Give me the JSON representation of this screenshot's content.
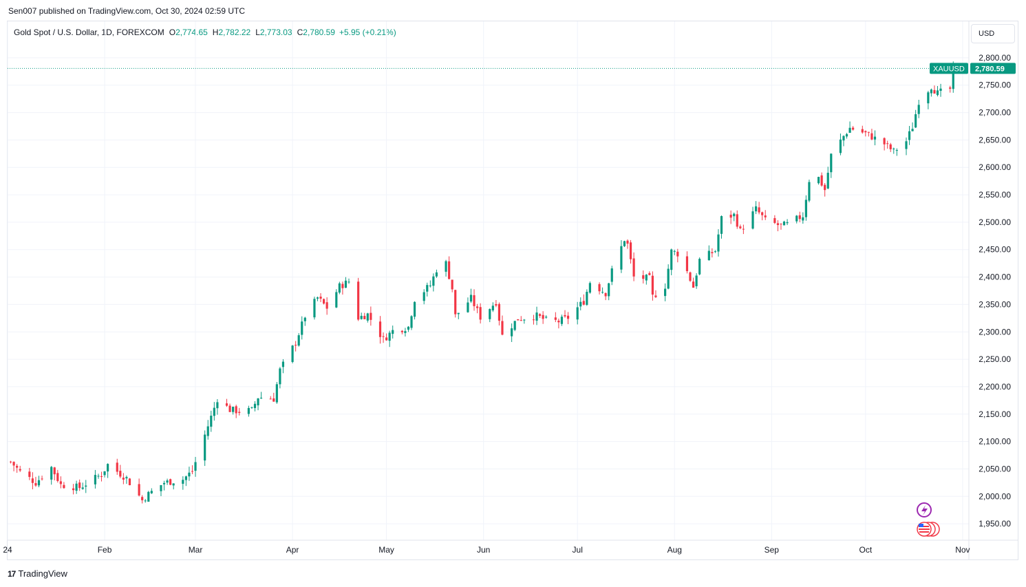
{
  "published": "Sen007 published on TradingView.com, Oct 30, 2024 02:59 UTC",
  "legend": {
    "symbol": "Gold Spot / U.S. Dollar, 1D, FOREXCOM",
    "o_label": "O",
    "o_value": "2,774.65",
    "h_label": "H",
    "h_value": "2,782.22",
    "l_label": "L",
    "l_value": "2,773.03",
    "c_label": "C",
    "c_value": "2,780.59",
    "change": "+5.95 (+0.21%)"
  },
  "currency": "USD",
  "footer": {
    "brand": "TradingView"
  },
  "colors": {
    "up": "#089981",
    "down": "#f23645",
    "grid": "#f0f3fa",
    "last_price_bg": "#089981"
  },
  "chart_data": {
    "type": "candlestick",
    "symbol_tag": "XAUUSD",
    "last_price": 2780.59,
    "last_price_label": "2,780.59",
    "ylim": [
      1920,
      2830
    ],
    "yticks": [
      1950,
      2000,
      2050,
      2100,
      2150,
      2200,
      2250,
      2300,
      2350,
      2400,
      2450,
      2500,
      2550,
      2600,
      2650,
      2700,
      2750,
      2800
    ],
    "ytick_labels": [
      "1,950.00",
      "2,000.00",
      "2,050.00",
      "2,100.00",
      "2,150.00",
      "2,200.00",
      "2,250.00",
      "2,300.00",
      "2,350.00",
      "2,400.00",
      "2,450.00",
      "2,500.00",
      "2,550.00",
      "2,600.00",
      "2,650.00",
      "2,700.00",
      "2,750.00",
      "2,800.00"
    ],
    "xrange": [
      "2024-01-01",
      "2024-11-03"
    ],
    "xticks": [
      {
        "date": "2024-01-01",
        "label": "24"
      },
      {
        "date": "2024-02-01",
        "label": "Feb"
      },
      {
        "date": "2024-03-01",
        "label": "Mar"
      },
      {
        "date": "2024-04-01",
        "label": "Apr"
      },
      {
        "date": "2024-05-01",
        "label": "May"
      },
      {
        "date": "2024-06-01",
        "label": "Jun"
      },
      {
        "date": "2024-07-01",
        "label": "Jul"
      },
      {
        "date": "2024-08-01",
        "label": "Aug"
      },
      {
        "date": "2024-09-01",
        "label": "Sep"
      },
      {
        "date": "2024-10-01",
        "label": "Oct"
      },
      {
        "date": "2024-11-01",
        "label": "Nov"
      }
    ],
    "price_path": [
      [
        "2024-01-02",
        2063
      ],
      [
        "2024-01-05",
        2045
      ],
      [
        "2024-01-10",
        2025
      ],
      [
        "2024-01-15",
        2053
      ],
      [
        "2024-01-18",
        2021
      ],
      [
        "2024-01-24",
        2016
      ],
      [
        "2024-01-31",
        2040
      ],
      [
        "2024-02-02",
        2058
      ],
      [
        "2024-02-08",
        2033
      ],
      [
        "2024-02-13",
        1993
      ],
      [
        "2024-02-15",
        2004
      ],
      [
        "2024-02-20",
        2025
      ],
      [
        "2024-02-26",
        2031
      ],
      [
        "2024-02-29",
        2046
      ],
      [
        "2024-03-04",
        2112
      ],
      [
        "2024-03-08",
        2178
      ],
      [
        "2024-03-12",
        2158
      ],
      [
        "2024-03-15",
        2155
      ],
      [
        "2024-03-19",
        2157
      ],
      [
        "2024-03-21",
        2181
      ],
      [
        "2024-03-26",
        2178
      ],
      [
        "2024-03-28",
        2230
      ],
      [
        "2024-04-02",
        2281
      ],
      [
        "2024-04-05",
        2329
      ],
      [
        "2024-04-09",
        2362
      ],
      [
        "2024-04-12",
        2344
      ],
      [
        "2024-04-16",
        2383
      ],
      [
        "2024-04-19",
        2392
      ],
      [
        "2024-04-22",
        2326
      ],
      [
        "2024-04-25",
        2332
      ],
      [
        "2024-04-30",
        2286
      ],
      [
        "2024-05-03",
        2302
      ],
      [
        "2024-05-08",
        2309
      ],
      [
        "2024-05-10",
        2360
      ],
      [
        "2024-05-15",
        2385
      ],
      [
        "2024-05-17",
        2414
      ],
      [
        "2024-05-20",
        2425
      ],
      [
        "2024-05-22",
        2379
      ],
      [
        "2024-05-23",
        2329
      ],
      [
        "2024-05-28",
        2361
      ],
      [
        "2024-05-31",
        2327
      ],
      [
        "2024-06-05",
        2355
      ],
      [
        "2024-06-07",
        2293
      ],
      [
        "2024-06-12",
        2324
      ],
      [
        "2024-06-18",
        2329
      ],
      [
        "2024-06-21",
        2321
      ],
      [
        "2024-06-25",
        2319
      ],
      [
        "2024-06-28",
        2326
      ],
      [
        "2024-07-03",
        2356
      ],
      [
        "2024-07-05",
        2391
      ],
      [
        "2024-07-10",
        2371
      ],
      [
        "2024-07-12",
        2411
      ],
      [
        "2024-07-16",
        2469
      ],
      [
        "2024-07-17",
        2459
      ],
      [
        "2024-07-19",
        2400
      ],
      [
        "2024-07-24",
        2397
      ],
      [
        "2024-07-25",
        2364
      ],
      [
        "2024-07-29",
        2384
      ],
      [
        "2024-07-31",
        2447
      ],
      [
        "2024-08-02",
        2443
      ],
      [
        "2024-08-05",
        2410
      ],
      [
        "2024-08-07",
        2382
      ],
      [
        "2024-08-09",
        2431
      ],
      [
        "2024-08-14",
        2448
      ],
      [
        "2024-08-16",
        2507
      ],
      [
        "2024-08-20",
        2513
      ],
      [
        "2024-08-22",
        2484
      ],
      [
        "2024-08-27",
        2524
      ],
      [
        "2024-08-30",
        2503
      ],
      [
        "2024-09-04",
        2493
      ],
      [
        "2024-09-06",
        2496
      ],
      [
        "2024-09-11",
        2512
      ],
      [
        "2024-09-13",
        2577
      ],
      [
        "2024-09-16",
        2581
      ],
      [
        "2024-09-18",
        2559
      ],
      [
        "2024-09-20",
        2622
      ],
      [
        "2024-09-24",
        2657
      ],
      [
        "2024-09-26",
        2672
      ],
      [
        "2024-10-01",
        2662
      ],
      [
        "2024-10-03",
        2656
      ],
      [
        "2024-10-07",
        2643
      ],
      [
        "2024-10-10",
        2629
      ],
      [
        "2024-10-14",
        2648
      ],
      [
        "2024-10-16",
        2674
      ],
      [
        "2024-10-18",
        2721
      ],
      [
        "2024-10-22",
        2748
      ],
      [
        "2024-10-24",
        2735
      ],
      [
        "2024-10-28",
        2743
      ],
      [
        "2024-10-29",
        2775
      ],
      [
        "2024-10-30",
        2780.59
      ]
    ]
  }
}
